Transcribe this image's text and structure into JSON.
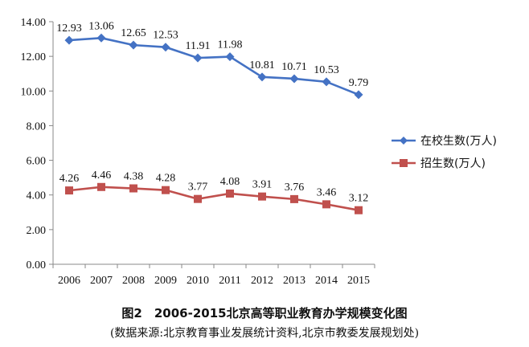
{
  "chart_data": {
    "type": "line",
    "categories": [
      "2006",
      "2007",
      "2008",
      "2009",
      "2010",
      "2011",
      "2012",
      "2013",
      "2014",
      "2015"
    ],
    "series": [
      {
        "name": "在校生数(万人)",
        "values": [
          12.93,
          13.06,
          12.65,
          12.53,
          11.91,
          11.98,
          10.81,
          10.71,
          10.53,
          9.79
        ],
        "color": "#4472C4",
        "marker": "diamond"
      },
      {
        "name": "招生数(万人)",
        "values": [
          4.26,
          4.46,
          4.38,
          4.28,
          3.77,
          4.08,
          3.91,
          3.76,
          3.46,
          3.12
        ],
        "color": "#C0504D",
        "marker": "square"
      }
    ],
    "yticks": [
      "0.00",
      "2.00",
      "4.00",
      "6.00",
      "8.00",
      "10.00",
      "12.00",
      "14.00"
    ],
    "ylim": [
      0,
      14
    ],
    "grid": false,
    "legend": "right"
  },
  "caption": {
    "title": "图2　2006-2015北京高等职业教育办学规模变化图",
    "source": "(数据来源:北京教育事业发展统计资料,北京市教委发展规划处)"
  }
}
